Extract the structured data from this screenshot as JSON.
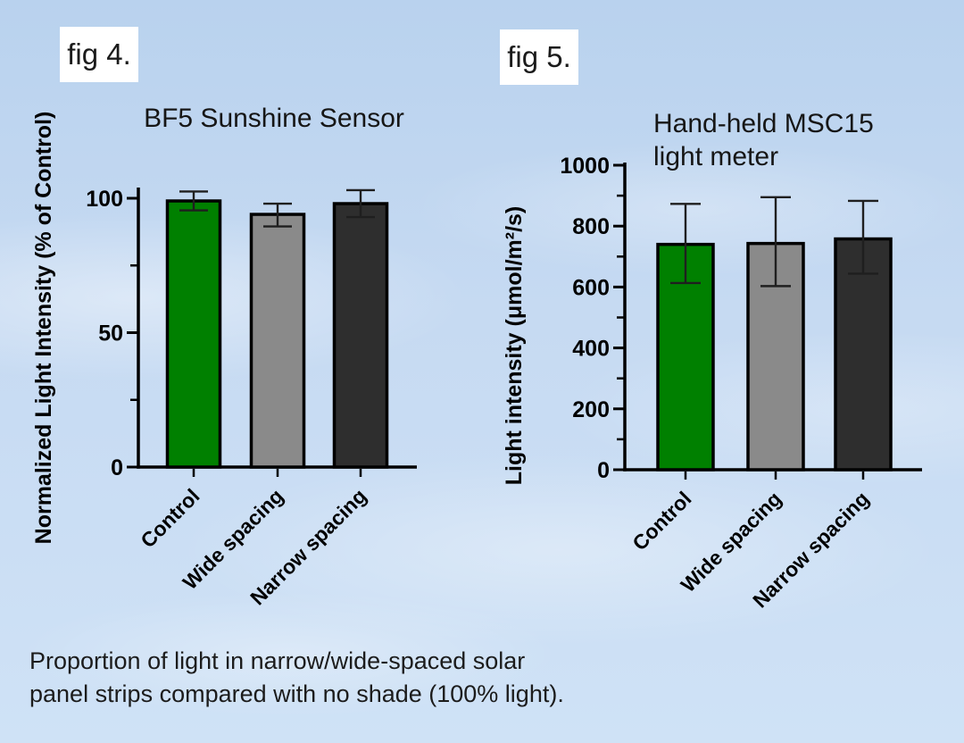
{
  "page": {
    "fig4_label": "fig 4.",
    "fig5_label": "fig 5.",
    "caption_lines": [
      "Proportion of light in narrow/wide-spaced solar",
      "panel strips compared with no shade (100% light)."
    ]
  },
  "colors": {
    "bar_control": "#008000",
    "bar_wide_spacing": "#8a8a8a",
    "bar_narrow_spacing": "#2e2e2e",
    "axis": "#000000",
    "error_bar": "#1f1f1f",
    "sky_top": "#b9d2ee",
    "sky_bottom": "#cfe2f6",
    "figure_label_background": "#ffffff"
  },
  "chart_data": [
    {
      "id": "bf5",
      "type": "bar",
      "title_lines": [
        "BF5 Sunshine Sensor"
      ],
      "ylabel": "Normalized Light Intensity (% of Control)",
      "xlabel": "",
      "categories": [
        "Control",
        "Wide spacing",
        "Narrow spacing"
      ],
      "values": [
        99,
        94,
        98
      ],
      "errors_plus": [
        3.5,
        4,
        5
      ],
      "errors_minus": [
        3.5,
        4.5,
        5
      ],
      "bar_colors": [
        "#008000",
        "#8a8a8a",
        "#2e2e2e"
      ],
      "ylim": [
        0,
        105
      ],
      "yticks_major": [
        0,
        50,
        100
      ],
      "yticks_minor": [
        25,
        75
      ],
      "grid": false,
      "legend": false
    },
    {
      "id": "msc15",
      "type": "bar",
      "title_lines": [
        "Hand-held MSC15",
        "light meter"
      ],
      "ylabel": "Light intensity (μmol/m²/s)",
      "xlabel": "",
      "categories": [
        "Control",
        "Wide spacing",
        "Narrow spacing"
      ],
      "values": [
        740,
        743,
        758
      ],
      "errors_plus": [
        133,
        152,
        125
      ],
      "errors_minus": [
        127,
        140,
        114
      ],
      "bar_colors": [
        "#008000",
        "#8a8a8a",
        "#2e2e2e"
      ],
      "ylim": [
        0,
        1005
      ],
      "yticks_major": [
        0,
        200,
        400,
        600,
        800,
        1000
      ],
      "yticks_minor": [
        100,
        300,
        500,
        700,
        900
      ],
      "grid": false,
      "legend": false
    }
  ]
}
